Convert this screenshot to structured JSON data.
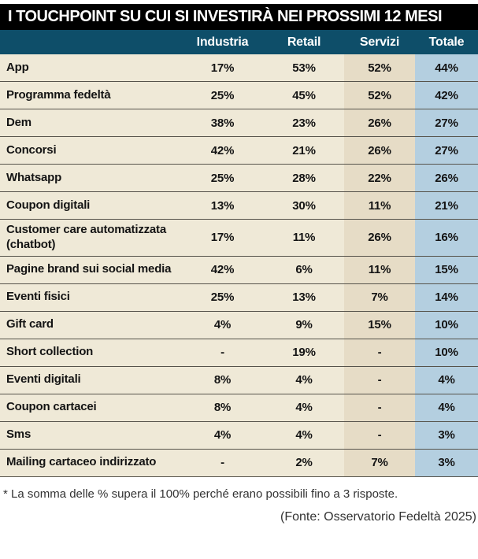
{
  "title": "I TOUCHPOINT SU CUI SI INVESTIRÀ NEI PROSSIMI 12 MESI",
  "colors": {
    "title_bg": "#000000",
    "column_header_bg": "#0E4E69",
    "base_bg": "#EFE9D7",
    "servizi_bg": "#E6DCC6",
    "totale_bg": "#B4CFE0"
  },
  "chart_data": {
    "type": "table",
    "title": "I TOUCHPOINT SU CUI SI INVESTIRÀ NEI PROSSIMI 12 MESI",
    "columns": [
      "Industria",
      "Retail",
      "Servizi",
      "Totale"
    ],
    "rows": [
      {
        "label": "App",
        "values": [
          "17%",
          "53%",
          "52%",
          "44%"
        ]
      },
      {
        "label": "Programma fedeltà",
        "values": [
          "25%",
          "45%",
          "52%",
          "42%"
        ]
      },
      {
        "label": "Dem",
        "values": [
          "38%",
          "23%",
          "26%",
          "27%"
        ]
      },
      {
        "label": "Concorsi",
        "values": [
          "42%",
          "21%",
          "26%",
          "27%"
        ]
      },
      {
        "label": "Whatsapp",
        "values": [
          "25%",
          "28%",
          "22%",
          "26%"
        ]
      },
      {
        "label": "Coupon digitali",
        "values": [
          "13%",
          "30%",
          "11%",
          "21%"
        ]
      },
      {
        "label": "Customer care automatizzata (chatbot)",
        "values": [
          "17%",
          "11%",
          "26%",
          "16%"
        ]
      },
      {
        "label": "Pagine brand sui social media",
        "values": [
          "42%",
          "6%",
          "11%",
          "15%"
        ]
      },
      {
        "label": "Eventi fisici",
        "values": [
          "25%",
          "13%",
          "7%",
          "14%"
        ]
      },
      {
        "label": "Gift card",
        "values": [
          "4%",
          "9%",
          "15%",
          "10%"
        ]
      },
      {
        "label": "Short collection",
        "values": [
          "-",
          "19%",
          "-",
          "10%"
        ]
      },
      {
        "label": "Eventi digitali",
        "values": [
          "8%",
          "4%",
          "-",
          "4%"
        ]
      },
      {
        "label": "Coupon cartacei",
        "values": [
          "8%",
          "4%",
          "-",
          "4%"
        ]
      },
      {
        "label": "Sms",
        "values": [
          "4%",
          "4%",
          "-",
          "3%"
        ]
      },
      {
        "label": "Mailing cartaceo indirizzato",
        "values": [
          "-",
          "2%",
          "7%",
          "3%"
        ]
      }
    ],
    "footnote": "* La somma delle % supera il 100% perché erano possibili fino a 3 risposte.",
    "source": "(Fonte: Osservatorio Fedeltà 2025)"
  }
}
